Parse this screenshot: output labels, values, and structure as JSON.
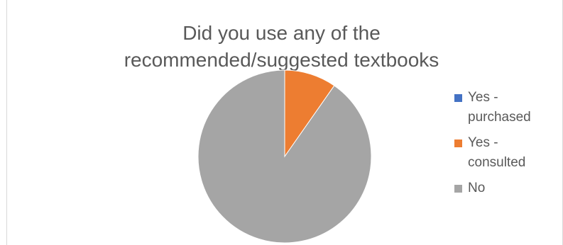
{
  "chart_data": {
    "type": "pie",
    "title_lines": [
      "Did you use any of the",
      "recommended/suggested textbooks"
    ],
    "legend_position": "right",
    "slices": [
      {
        "label_lines": [
          "Yes -",
          "purchased"
        ],
        "value": 0,
        "color": "#4472c4"
      },
      {
        "label_lines": [
          "Yes -",
          "consulted"
        ],
        "value": 9.7,
        "color": "#ed7d31"
      },
      {
        "label_lines": [
          "No"
        ],
        "value": 90.3,
        "color": "#a5a5a5"
      }
    ]
  }
}
